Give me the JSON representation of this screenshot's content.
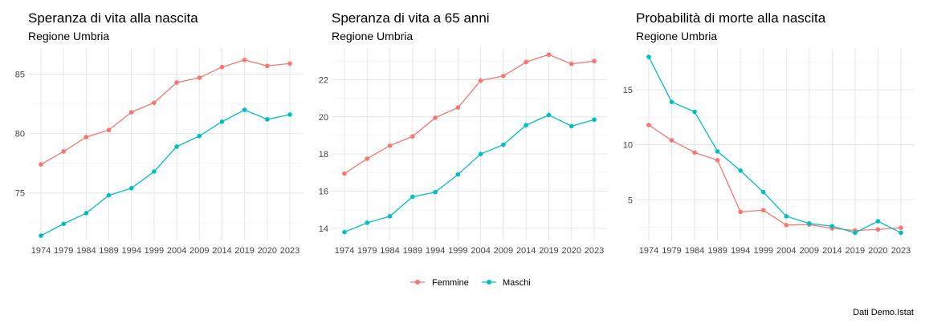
{
  "chart_data": [
    {
      "type": "line",
      "title": "Speranza di vita alla nascita",
      "subtitle": "Regione Umbria",
      "categories": [
        "1974",
        "1979",
        "1984",
        "1989",
        "1994",
        "1999",
        "2004",
        "2009",
        "2014",
        "2019",
        "2020",
        "2023"
      ],
      "series": [
        {
          "name": "Femmine",
          "values": [
            77.4,
            78.5,
            79.7,
            80.3,
            81.8,
            82.6,
            84.3,
            84.7,
            85.6,
            86.2,
            85.7,
            85.9
          ]
        },
        {
          "name": "Maschi",
          "values": [
            71.4,
            72.4,
            73.3,
            74.8,
            75.4,
            76.8,
            78.9,
            79.8,
            81.0,
            82.0,
            81.2,
            81.6
          ]
        }
      ],
      "ylim": [
        71.0,
        87.2
      ],
      "yticks": [
        75,
        80,
        85
      ],
      "grid": true
    },
    {
      "type": "line",
      "title": "Speranza di vita a 65 anni",
      "subtitle": "Regione Umbria",
      "categories": [
        "1974",
        "1979",
        "1984",
        "1989",
        "1994",
        "1999",
        "2004",
        "2009",
        "2014",
        "2019",
        "2020",
        "2023"
      ],
      "series": [
        {
          "name": "Femmine",
          "values": [
            16.95,
            17.75,
            18.45,
            18.95,
            19.95,
            20.5,
            21.95,
            22.2,
            22.95,
            23.35,
            22.85,
            23.0
          ]
        },
        {
          "name": "Maschi",
          "values": [
            13.8,
            14.3,
            14.65,
            15.7,
            15.95,
            16.9,
            18.0,
            18.5,
            19.55,
            20.1,
            19.5,
            19.85
          ]
        }
      ],
      "ylim": [
        13.35,
        23.7
      ],
      "yticks": [
        14,
        16,
        18,
        20,
        22
      ],
      "grid": true
    },
    {
      "type": "line",
      "title": "Probabilità di morte alla nascita",
      "subtitle": "Regione Umbria",
      "categories": [
        "1974",
        "1979",
        "1984",
        "1989",
        "1994",
        "1999",
        "2004",
        "2009",
        "2014",
        "2019",
        "2020",
        "2023"
      ],
      "series": [
        {
          "name": "Femmine",
          "values": [
            11.8,
            10.4,
            9.3,
            8.6,
            3.9,
            4.05,
            2.7,
            2.75,
            2.4,
            2.2,
            2.3,
            2.45
          ]
        },
        {
          "name": "Maschi",
          "values": [
            18.0,
            13.9,
            13.0,
            9.4,
            7.65,
            5.7,
            3.5,
            2.85,
            2.6,
            2.0,
            3.05,
            2.0
          ]
        }
      ],
      "ylim": [
        1.3,
        18.8
      ],
      "yticks": [
        5,
        10,
        15
      ],
      "grid": true
    }
  ],
  "legend": {
    "placement": "bottom",
    "items": [
      {
        "label": "Femmine",
        "color": "#F8766D"
      },
      {
        "label": "Maschi",
        "color": "#00BFC4"
      }
    ]
  },
  "colors": {
    "Femmine": "#F8766D",
    "Maschi": "#00BFC4"
  },
  "caption": "Dati Demo.Istat"
}
